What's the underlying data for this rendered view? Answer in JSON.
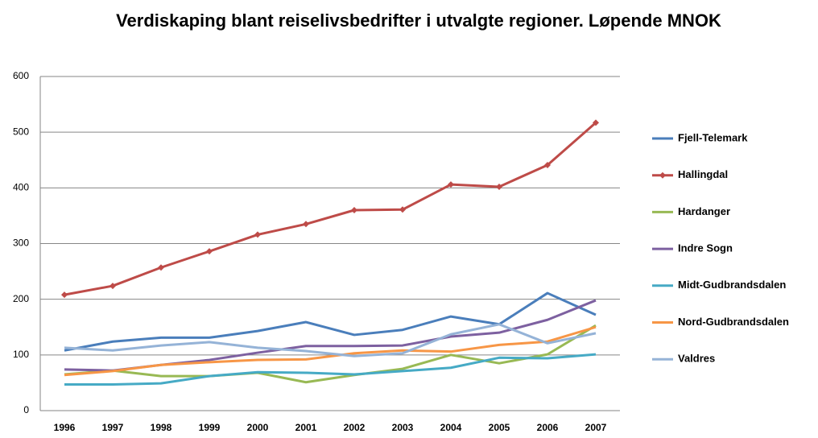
{
  "chart_data": {
    "type": "line",
    "title": "Verdiskaping blant reiselivsbedrifter i utvalgte regioner. Løpende MNOK",
    "categories": [
      "1996",
      "1997",
      "1998",
      "1999",
      "2000",
      "2001",
      "2002",
      "2003",
      "2004",
      "2005",
      "2006",
      "2007"
    ],
    "series": [
      {
        "name": "Fjell-Telemark",
        "color": "#4a7ebb",
        "values": [
          108,
          124,
          131,
          131,
          143,
          159,
          136,
          145,
          169,
          155,
          211,
          172
        ]
      },
      {
        "name": "Hallingdal",
        "color": "#be4b48",
        "marker": "diamond",
        "values": [
          208,
          224,
          257,
          286,
          316,
          335,
          360,
          361,
          406,
          402,
          441,
          517
        ]
      },
      {
        "name": "Hardanger",
        "color": "#98b954",
        "values": [
          65,
          72,
          62,
          62,
          68,
          51,
          64,
          75,
          100,
          85,
          101,
          153
        ]
      },
      {
        "name": "Indre Sogn",
        "color": "#7d60a0",
        "values": [
          74,
          72,
          82,
          91,
          104,
          116,
          116,
          117,
          133,
          140,
          163,
          198
        ]
      },
      {
        "name": "Midt-Gudbrandsdalen",
        "color": "#46aac5",
        "values": [
          47,
          47,
          49,
          62,
          69,
          68,
          65,
          71,
          77,
          95,
          94,
          101
        ]
      },
      {
        "name": "Nord-Gudbrandsdalen",
        "color": "#f79646",
        "values": [
          64,
          71,
          82,
          87,
          91,
          92,
          103,
          108,
          106,
          118,
          124,
          150
        ]
      },
      {
        "name": "Valdres",
        "color": "#95b3d7",
        "values": [
          113,
          108,
          117,
          123,
          113,
          107,
          98,
          103,
          137,
          155,
          121,
          139
        ]
      }
    ],
    "ylim": [
      0,
      600
    ],
    "yticks": [
      0,
      100,
      200,
      300,
      400,
      500,
      600
    ],
    "grid": true,
    "legend": "right"
  }
}
